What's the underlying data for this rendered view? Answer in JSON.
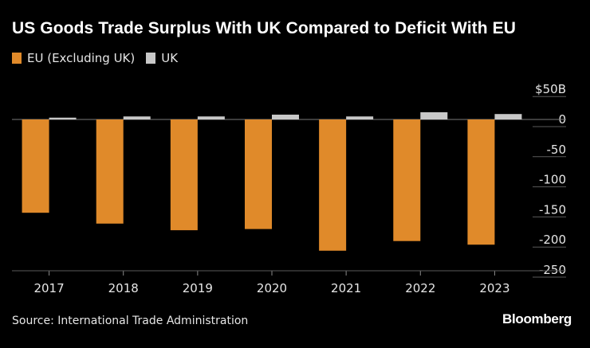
{
  "chart_data": {
    "type": "bar",
    "title": "US Goods Trade Surplus With UK Compared to Deficit With EU",
    "categories": [
      "2017",
      "2018",
      "2019",
      "2020",
      "2021",
      "2022",
      "2023"
    ],
    "series": [
      {
        "name": "EU (Excluding UK)",
        "color": "#e08a2a",
        "values": [
          -155,
          -173,
          -184,
          -182,
          -218,
          -202,
          -208
        ]
      },
      {
        "name": "UK",
        "color": "#c8c8c8",
        "values": [
          3,
          5,
          5,
          8,
          5,
          12,
          9
        ]
      }
    ],
    "ylim": [
      -250,
      50
    ],
    "yticks": [
      0,
      -50,
      -100,
      -150,
      -200,
      -250
    ],
    "ytick_labels": [
      "0",
      "-50",
      "-100",
      "-150",
      "-200",
      "-250"
    ],
    "ylabel_top": "$50B",
    "xlabel": "",
    "ylabel": "",
    "legend_position": "top-left"
  },
  "footer": {
    "source": "Source: International Trade Administration",
    "brand": "Bloomberg"
  }
}
